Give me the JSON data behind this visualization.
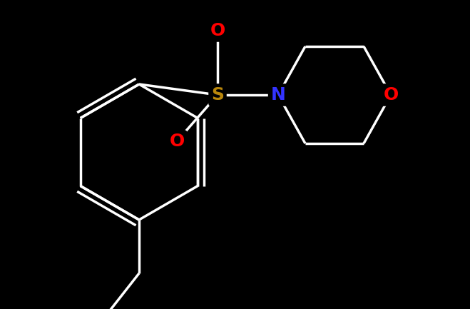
{
  "background_color": "#000000",
  "atom_colors": {
    "C": "#ffffff",
    "O": "#ff0000",
    "N": "#3333ff",
    "S": "#b8860b",
    "OH": "#ff0000"
  },
  "bond_color": "#ffffff",
  "bond_width": 2.5,
  "figsize": [
    6.59,
    4.33
  ],
  "dpi": 100,
  "xlim": [
    0,
    659
  ],
  "ylim": [
    0,
    433
  ]
}
